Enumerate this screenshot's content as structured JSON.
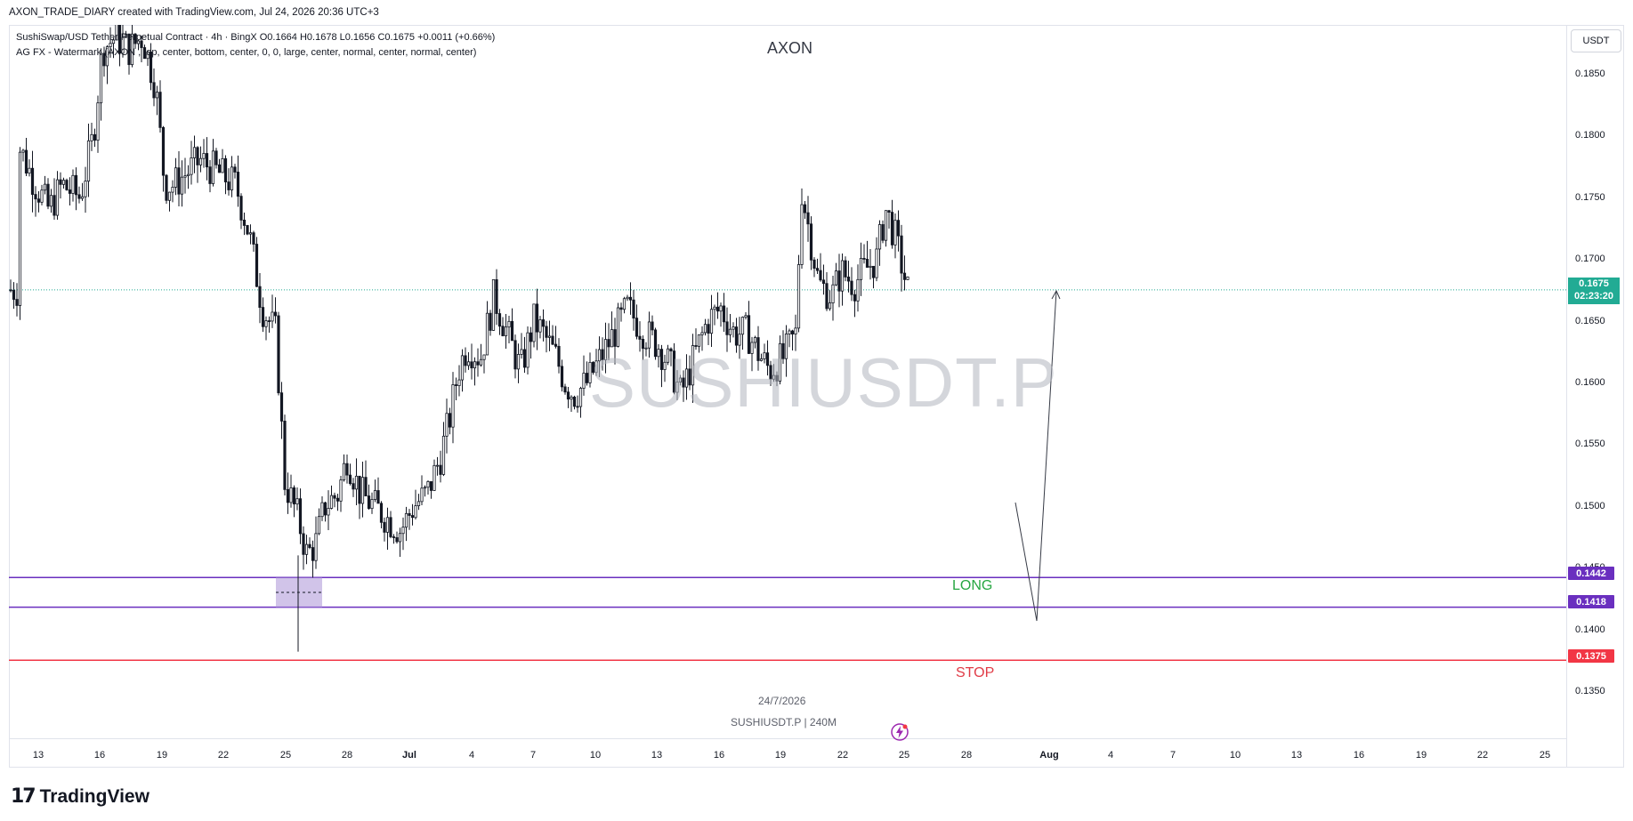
{
  "header": {
    "created_line": "AXON_TRADE_DIARY created with TradingView.com, Jul 24, 2026 20:36 UTC+3"
  },
  "legend": {
    "symbol_line_prefix": "SushiSwap/USD Tether Perpetual Contract · 4h · BingX",
    "ohlc": "O0.1664 H0.1678 L0.1656 C0.1675 +0.0011 (+0.66%)",
    "indicator_line": "AG FX - Watermark (AXON , top, center, bottom, center, 0, 0, large, center, normal, center, normal, center)"
  },
  "watermark": {
    "top_text": "AXON",
    "center_text": "SUSHIUSDT.P",
    "date_text": "24/7/2026",
    "symbol_text": "SUSHIUSDT.P | 240M"
  },
  "currency_button": "USDT",
  "price_axis": {
    "ticks": [
      "0.1850",
      "0.1800",
      "0.1750",
      "0.1700",
      "0.1650",
      "0.1600",
      "0.1550",
      "0.1500",
      "0.1450",
      "0.1400",
      "0.1350"
    ]
  },
  "time_axis": {
    "ticks": [
      "13",
      "16",
      "19",
      "22",
      "25",
      "28",
      "Jul",
      "4",
      "7",
      "10",
      "13",
      "16",
      "19",
      "22",
      "25",
      "28",
      "Aug",
      "4",
      "7",
      "10",
      "13",
      "16",
      "19",
      "22",
      "25"
    ]
  },
  "last_price": {
    "price": "0.1675",
    "countdown": "02:23:20",
    "color": "#22ab94"
  },
  "levels": [
    {
      "name": "long-zone-top",
      "price": "0.1442",
      "color": "#6a2fbf"
    },
    {
      "name": "long-zone-bottom",
      "price": "0.1418",
      "color": "#6a2fbf"
    },
    {
      "name": "stop",
      "price": "0.1375",
      "color": "#f23645"
    }
  ],
  "labels": {
    "long": "LONG",
    "stop": "STOP"
  },
  "branding": {
    "logo_mark": "17",
    "logo_text": "TradingView"
  },
  "colors": {
    "up": "#089981",
    "down": "#131722",
    "candle": "#131722"
  }
}
